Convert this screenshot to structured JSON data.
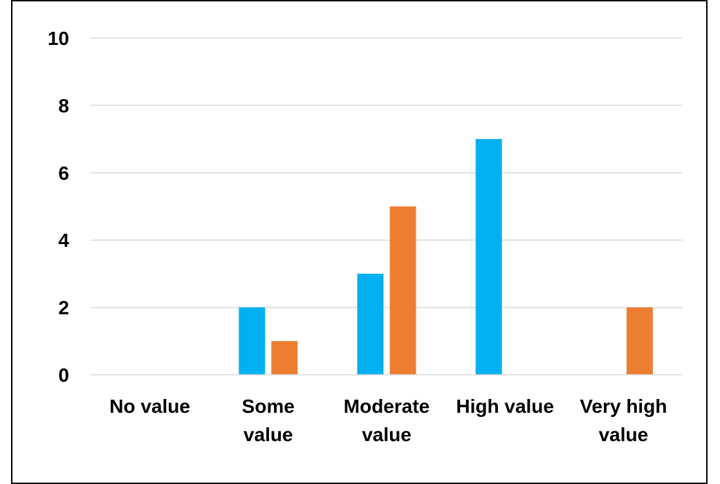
{
  "chart_data": {
    "type": "bar",
    "categories": [
      "No value",
      "Some value",
      "Moderate value",
      "High value",
      "Very high value"
    ],
    "category_lines": [
      [
        "No value"
      ],
      [
        "Some",
        "value"
      ],
      [
        "Moderate",
        "value"
      ],
      [
        "High value"
      ],
      [
        "Very high",
        "value"
      ]
    ],
    "series": [
      {
        "values": [
          0,
          2,
          3,
          7,
          0
        ],
        "color": "#00B0F0"
      },
      {
        "values": [
          0,
          1,
          5,
          0,
          2
        ],
        "color": "#ED7D31"
      }
    ],
    "ylim": [
      0,
      10
    ],
    "yticks": [
      0,
      2,
      4,
      6,
      8,
      10
    ],
    "grid": true,
    "legend": "none"
  }
}
